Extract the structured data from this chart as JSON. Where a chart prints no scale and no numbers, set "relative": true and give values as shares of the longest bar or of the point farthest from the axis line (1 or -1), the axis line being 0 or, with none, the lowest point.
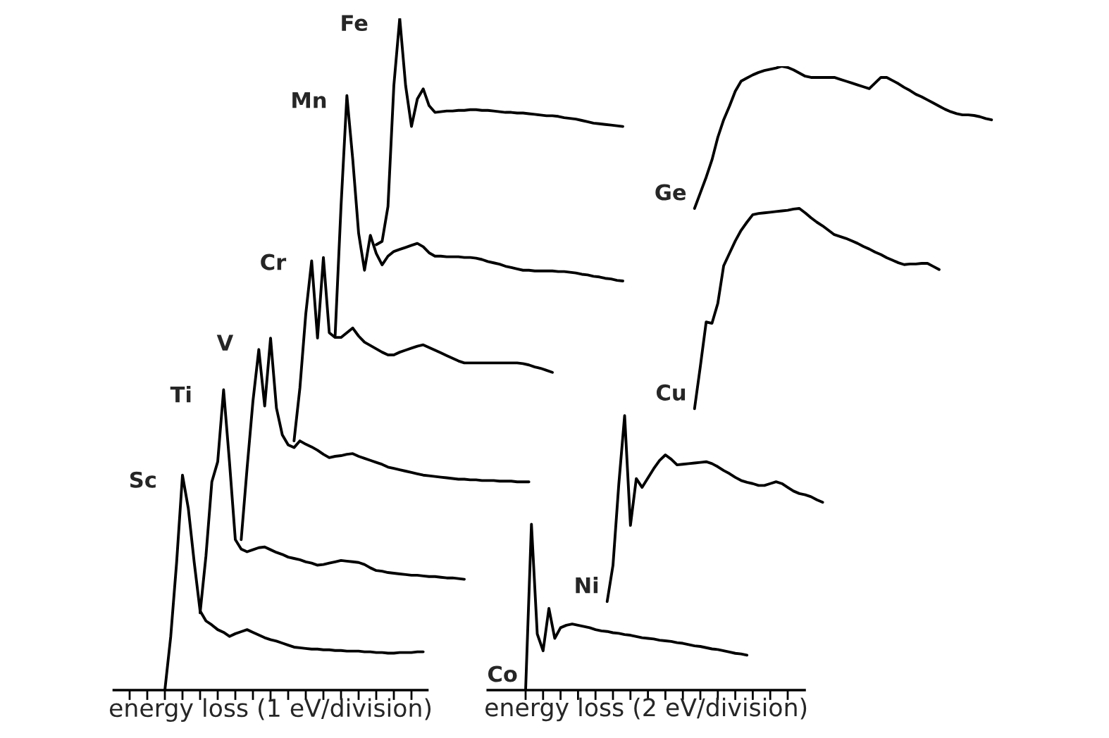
{
  "chart_data": [
    {
      "type": "line",
      "relative": true,
      "xlabel": "energy loss (1 eV/division)",
      "grid": false,
      "categories": [
        null,
        null,
        null,
        null,
        null,
        null,
        null,
        null,
        null,
        null,
        null,
        null,
        null,
        null,
        null,
        null,
        null,
        null,
        null,
        null,
        null,
        null,
        null,
        null,
        null,
        null,
        null,
        null,
        null,
        null,
        null,
        null,
        null,
        null,
        null,
        null,
        null,
        null,
        null,
        null,
        null,
        null,
        null,
        null,
        null,
        null,
        null,
        null,
        null,
        null,
        null,
        null,
        null,
        null,
        null,
        null,
        null,
        null,
        null,
        null,
        null,
        null,
        null,
        null,
        null,
        null,
        null,
        null,
        null,
        null,
        null,
        null,
        null,
        null,
        null,
        null,
        null,
        null,
        null,
        null,
        null,
        null,
        null,
        null,
        null,
        null,
        null,
        null
      ],
      "series": [
        {
          "name": "Sc",
          "color": "#000000",
          "values": [
            null,
            null,
            null,
            null,
            null,
            null,
            null,
            null,
            null,
            0,
            0.08,
            0.19,
            0.32,
            0.27,
            0.19,
            0.118,
            0.103,
            0.097,
            0.09,
            0.086,
            0.08,
            0.084,
            0.087,
            0.09,
            0.086,
            0.082,
            0.078,
            0.075,
            0.073,
            0.07,
            0.067,
            0.064,
            0.063,
            0.062,
            0.061,
            0.061,
            0.06,
            0.06,
            0.059,
            0.059,
            0.058,
            0.058,
            0.058,
            0.057,
            0.057,
            0.056,
            0.056,
            0.055,
            0.055,
            0.056,
            0.056,
            0.056,
            0.057,
            0.057,
            null,
            null,
            null,
            null,
            null,
            null,
            null,
            null,
            null,
            null,
            null,
            null,
            null,
            null,
            null,
            null,
            null,
            null,
            null,
            null,
            null,
            null,
            null,
            null,
            null,
            null,
            null,
            null,
            null,
            null,
            null,
            null,
            null,
            null
          ]
        },
        {
          "name": "Ti",
          "color": "#000000",
          "values": [
            null,
            null,
            null,
            null,
            null,
            null,
            null,
            null,
            null,
            null,
            null,
            null,
            null,
            null,
            null,
            0.115,
            0.2,
            0.31,
            0.34,
            0.447,
            0.34,
            0.224,
            0.21,
            0.206,
            0.209,
            0.212,
            0.213,
            0.209,
            0.205,
            0.202,
            0.198,
            0.196,
            0.194,
            0.191,
            0.189,
            0.186,
            0.187,
            0.189,
            0.191,
            0.193,
            0.192,
            0.191,
            0.19,
            0.187,
            0.182,
            0.178,
            0.177,
            0.175,
            0.174,
            0.173,
            0.172,
            0.171,
            0.171,
            0.17,
            0.169,
            0.169,
            0.168,
            0.167,
            0.167,
            0.166,
            0.165,
            null,
            null,
            null,
            null,
            null,
            null,
            null,
            null,
            null,
            null,
            null,
            null,
            null,
            null,
            null,
            null,
            null,
            null,
            null,
            null,
            null,
            null,
            null,
            null,
            null,
            null,
            null
          ]
        },
        {
          "name": "V",
          "color": "#000000",
          "values": [
            null,
            null,
            null,
            null,
            null,
            null,
            null,
            null,
            null,
            null,
            null,
            null,
            null,
            null,
            null,
            null,
            null,
            null,
            null,
            null,
            null,
            null,
            0.224,
            0.33,
            0.43,
            0.507,
            0.423,
            0.524,
            0.42,
            0.38,
            0.365,
            0.361,
            0.371,
            0.366,
            0.362,
            0.357,
            0.351,
            0.346,
            0.348,
            0.349,
            0.351,
            0.352,
            0.348,
            0.345,
            0.342,
            0.339,
            0.336,
            0.332,
            0.33,
            0.328,
            0.326,
            0.324,
            0.322,
            0.32,
            0.319,
            0.318,
            0.317,
            0.316,
            0.315,
            0.314,
            0.314,
            0.313,
            0.313,
            0.312,
            0.312,
            0.312,
            0.311,
            0.311,
            0.311,
            0.31,
            0.31,
            0.31,
            null,
            null,
            null,
            null,
            null,
            null,
            null,
            null,
            null,
            null,
            null,
            null,
            null,
            null,
            null,
            null
          ]
        },
        {
          "name": "Cr",
          "color": "#000000",
          "values": [
            null,
            null,
            null,
            null,
            null,
            null,
            null,
            null,
            null,
            null,
            null,
            null,
            null,
            null,
            null,
            null,
            null,
            null,
            null,
            null,
            null,
            null,
            null,
            null,
            null,
            null,
            null,
            null,
            null,
            null,
            null,
            0.371,
            0.45,
            0.56,
            0.639,
            0.524,
            0.644,
            0.532,
            0.525,
            0.525,
            0.532,
            0.539,
            0.527,
            0.518,
            0.513,
            0.508,
            0.503,
            0.499,
            0.499,
            0.503,
            0.506,
            0.509,
            0.512,
            0.514,
            0.51,
            0.506,
            0.502,
            0.498,
            0.494,
            0.49,
            0.487,
            0.487,
            0.487,
            0.487,
            0.487,
            0.487,
            0.487,
            0.487,
            0.487,
            0.487,
            0.486,
            0.484,
            0.481,
            0.479,
            0.476,
            0.473,
            null,
            null,
            null,
            null,
            null,
            null,
            null,
            null,
            null,
            null,
            null,
            null
          ]
        },
        {
          "name": "Mn",
          "color": "#000000",
          "values": [
            null,
            null,
            null,
            null,
            null,
            null,
            null,
            null,
            null,
            null,
            null,
            null,
            null,
            null,
            null,
            null,
            null,
            null,
            null,
            null,
            null,
            null,
            null,
            null,
            null,
            null,
            null,
            null,
            null,
            null,
            null,
            null,
            null,
            null,
            null,
            null,
            null,
            null,
            0.528,
            0.72,
            0.885,
            0.79,
            0.68,
            0.625,
            0.677,
            0.65,
            0.633,
            0.646,
            0.653,
            0.656,
            0.659,
            0.662,
            0.665,
            0.66,
            0.651,
            0.646,
            0.646,
            0.645,
            0.645,
            0.645,
            0.644,
            0.644,
            0.643,
            0.641,
            0.638,
            0.636,
            0.634,
            0.631,
            0.629,
            0.627,
            0.625,
            0.625,
            0.624,
            0.624,
            0.624,
            0.624,
            0.623,
            0.623,
            0.622,
            0.621,
            0.619,
            0.618,
            0.616,
            0.615,
            0.613,
            0.612,
            0.61,
            0.609
          ]
        },
        {
          "name": "Fe",
          "color": "#000000",
          "values": [
            null,
            null,
            null,
            null,
            null,
            null,
            null,
            null,
            null,
            null,
            null,
            null,
            null,
            null,
            null,
            null,
            null,
            null,
            null,
            null,
            null,
            null,
            null,
            null,
            null,
            null,
            null,
            null,
            null,
            null,
            null,
            null,
            null,
            null,
            null,
            null,
            null,
            null,
            null,
            null,
            null,
            null,
            null,
            null,
            null,
            0.663,
            0.668,
            0.72,
            0.9,
            1.0,
            0.9,
            0.839,
            0.88,
            0.895,
            0.87,
            0.86,
            0.861,
            0.862,
            0.862,
            0.863,
            0.863,
            0.864,
            0.864,
            0.863,
            0.863,
            0.862,
            0.861,
            0.86,
            0.86,
            0.859,
            0.859,
            0.858,
            0.857,
            0.856,
            0.855,
            0.855,
            0.854,
            0.852,
            0.851,
            0.85,
            0.848,
            0.846,
            0.844,
            0.843,
            0.842,
            0.841,
            0.84,
            0.839
          ]
        }
      ]
    },
    {
      "type": "line",
      "relative": true,
      "xlabel": "energy loss (2 eV/division)",
      "grid": false,
      "categories": [
        null,
        null,
        null,
        null,
        null,
        null,
        null,
        null,
        null,
        null,
        null,
        null,
        null,
        null,
        null,
        null,
        null,
        null,
        null,
        null,
        null,
        null,
        null,
        null,
        null,
        null,
        null,
        null,
        null,
        null,
        null,
        null,
        null,
        null,
        null,
        null,
        null,
        null,
        null,
        null,
        null,
        null,
        null,
        null,
        null,
        null,
        null,
        null,
        null,
        null,
        null,
        null,
        null,
        null,
        null,
        null,
        null,
        null,
        null,
        null,
        null,
        null,
        null,
        null,
        null,
        null,
        null,
        null,
        null,
        null,
        null,
        null,
        null,
        null,
        null,
        null,
        null,
        null,
        null,
        null,
        null,
        null,
        null,
        null,
        null,
        null,
        null
      ],
      "series": [
        {
          "name": "Co",
          "color": "#000000",
          "values": [
            null,
            null,
            null,
            null,
            null,
            null,
            0,
            0.266,
            0.09,
            0.063,
            0.131,
            0.083,
            0.1,
            0.104,
            0.106,
            0.104,
            0.102,
            0.1,
            0.097,
            0.095,
            0.094,
            0.092,
            0.091,
            0.089,
            0.088,
            0.086,
            0.084,
            0.083,
            0.082,
            0.08,
            0.079,
            0.078,
            0.076,
            0.075,
            0.073,
            0.071,
            0.07,
            0.068,
            0.066,
            0.065,
            0.063,
            0.061,
            0.059,
            0.058,
            0.056,
            null,
            null,
            null,
            null,
            null,
            null,
            null,
            null,
            null,
            null,
            null,
            null,
            null,
            null,
            null,
            null,
            null,
            null,
            null,
            null,
            null,
            null,
            null,
            null,
            null,
            null,
            null,
            null,
            null,
            null,
            null,
            null,
            null,
            null,
            null,
            null,
            null,
            null,
            null,
            null,
            null,
            null
          ]
        },
        {
          "name": "Ni",
          "color": "#000000",
          "values": [
            null,
            null,
            null,
            null,
            null,
            null,
            null,
            null,
            null,
            null,
            null,
            null,
            null,
            null,
            null,
            null,
            null,
            null,
            null,
            null,
            0.142,
            0.2,
            0.33,
            0.44,
            0.264,
            0.339,
            0.325,
            0.34,
            0.355,
            0.368,
            0.377,
            0.37,
            0.361,
            0.362,
            0.363,
            0.364,
            0.365,
            0.366,
            0.363,
            0.358,
            0.352,
            0.347,
            0.341,
            0.336,
            0.333,
            0.331,
            0.328,
            0.328,
            0.331,
            0.334,
            0.331,
            0.325,
            0.319,
            0.315,
            0.313,
            0.31,
            0.305,
            0.301,
            null,
            null,
            null,
            null,
            null,
            null,
            null,
            null,
            null,
            null,
            null,
            null,
            null,
            null,
            null,
            null,
            null,
            null,
            null,
            null,
            null,
            null,
            null,
            null,
            null,
            null,
            null,
            null,
            null
          ]
        },
        {
          "name": "Cu",
          "color": "#000000",
          "values": [
            null,
            null,
            null,
            null,
            null,
            null,
            null,
            null,
            null,
            null,
            null,
            null,
            null,
            null,
            null,
            null,
            null,
            null,
            null,
            null,
            null,
            null,
            null,
            null,
            null,
            null,
            null,
            null,
            null,
            null,
            null,
            null,
            null,
            null,
            null,
            0.451,
            0.519,
            0.59,
            0.588,
            0.62,
            0.68,
            0.7,
            0.72,
            0.737,
            0.75,
            0.762,
            0.764,
            0.765,
            0.766,
            0.767,
            0.768,
            0.769,
            0.771,
            0.772,
            0.765,
            0.757,
            0.75,
            0.744,
            0.737,
            0.73,
            0.727,
            0.724,
            0.72,
            0.716,
            0.711,
            0.707,
            0.702,
            0.698,
            0.693,
            0.689,
            0.685,
            0.682,
            0.683,
            0.683,
            0.684,
            0.684,
            0.679,
            0.674,
            null,
            null,
            null,
            null,
            null,
            null,
            null,
            null,
            null
          ]
        },
        {
          "name": "Ge",
          "color": "#000000",
          "values": [
            null,
            null,
            null,
            null,
            null,
            null,
            null,
            null,
            null,
            null,
            null,
            null,
            null,
            null,
            null,
            null,
            null,
            null,
            null,
            null,
            null,
            null,
            null,
            null,
            null,
            null,
            null,
            null,
            null,
            null,
            null,
            null,
            null,
            null,
            null,
            0.772,
            0.797,
            0.822,
            0.85,
            0.886,
            0.914,
            0.936,
            0.96,
            0.976,
            0.981,
            0.986,
            0.99,
            0.993,
            0.995,
            0.997,
            1.0,
            0.998,
            0.994,
            0.989,
            0.984,
            0.982,
            0.982,
            0.982,
            0.982,
            0.982,
            0.979,
            0.976,
            0.973,
            0.97,
            0.967,
            0.964,
            0.973,
            0.982,
            0.982,
            0.977,
            0.972,
            0.966,
            0.961,
            0.955,
            0.951,
            0.946,
            0.941,
            0.936,
            0.931,
            0.927,
            0.924,
            0.922,
            0.922,
            0.921,
            0.919,
            0.916,
            0.914
          ]
        }
      ]
    }
  ]
}
